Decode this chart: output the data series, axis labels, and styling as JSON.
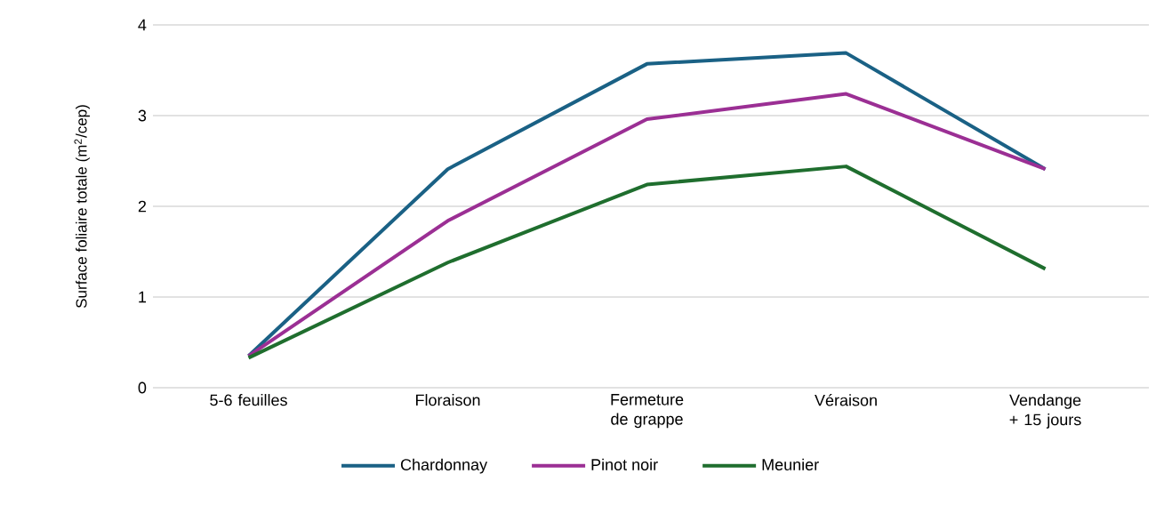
{
  "chart_data": {
    "type": "line",
    "ylabel": "Surface foliaire totale (m$^{2}$/cep)",
    "categories": [
      "5-6 feuilles",
      "Floraison",
      "Fermeture de grappe",
      "Véraison",
      "Vendange + 15 jours"
    ],
    "series": [
      {
        "name": "Chardonnay",
        "color": "#1a6185",
        "values": [
          0.35,
          2.41,
          3.57,
          3.69,
          2.41
        ]
      },
      {
        "name": "Pinot noir",
        "color": "#9b2f94",
        "values": [
          0.35,
          1.84,
          2.96,
          3.24,
          2.41
        ]
      },
      {
        "name": "Meunier",
        "color": "#1f6e2e",
        "values": [
          0.33,
          1.38,
          2.24,
          2.44,
          1.31
        ]
      }
    ],
    "ylim": [
      0,
      4
    ],
    "yticks": [
      0,
      1,
      2,
      3,
      4
    ],
    "grid": "y",
    "legend": "bottom",
    "marker": "none",
    "line_style": "solid"
  }
}
